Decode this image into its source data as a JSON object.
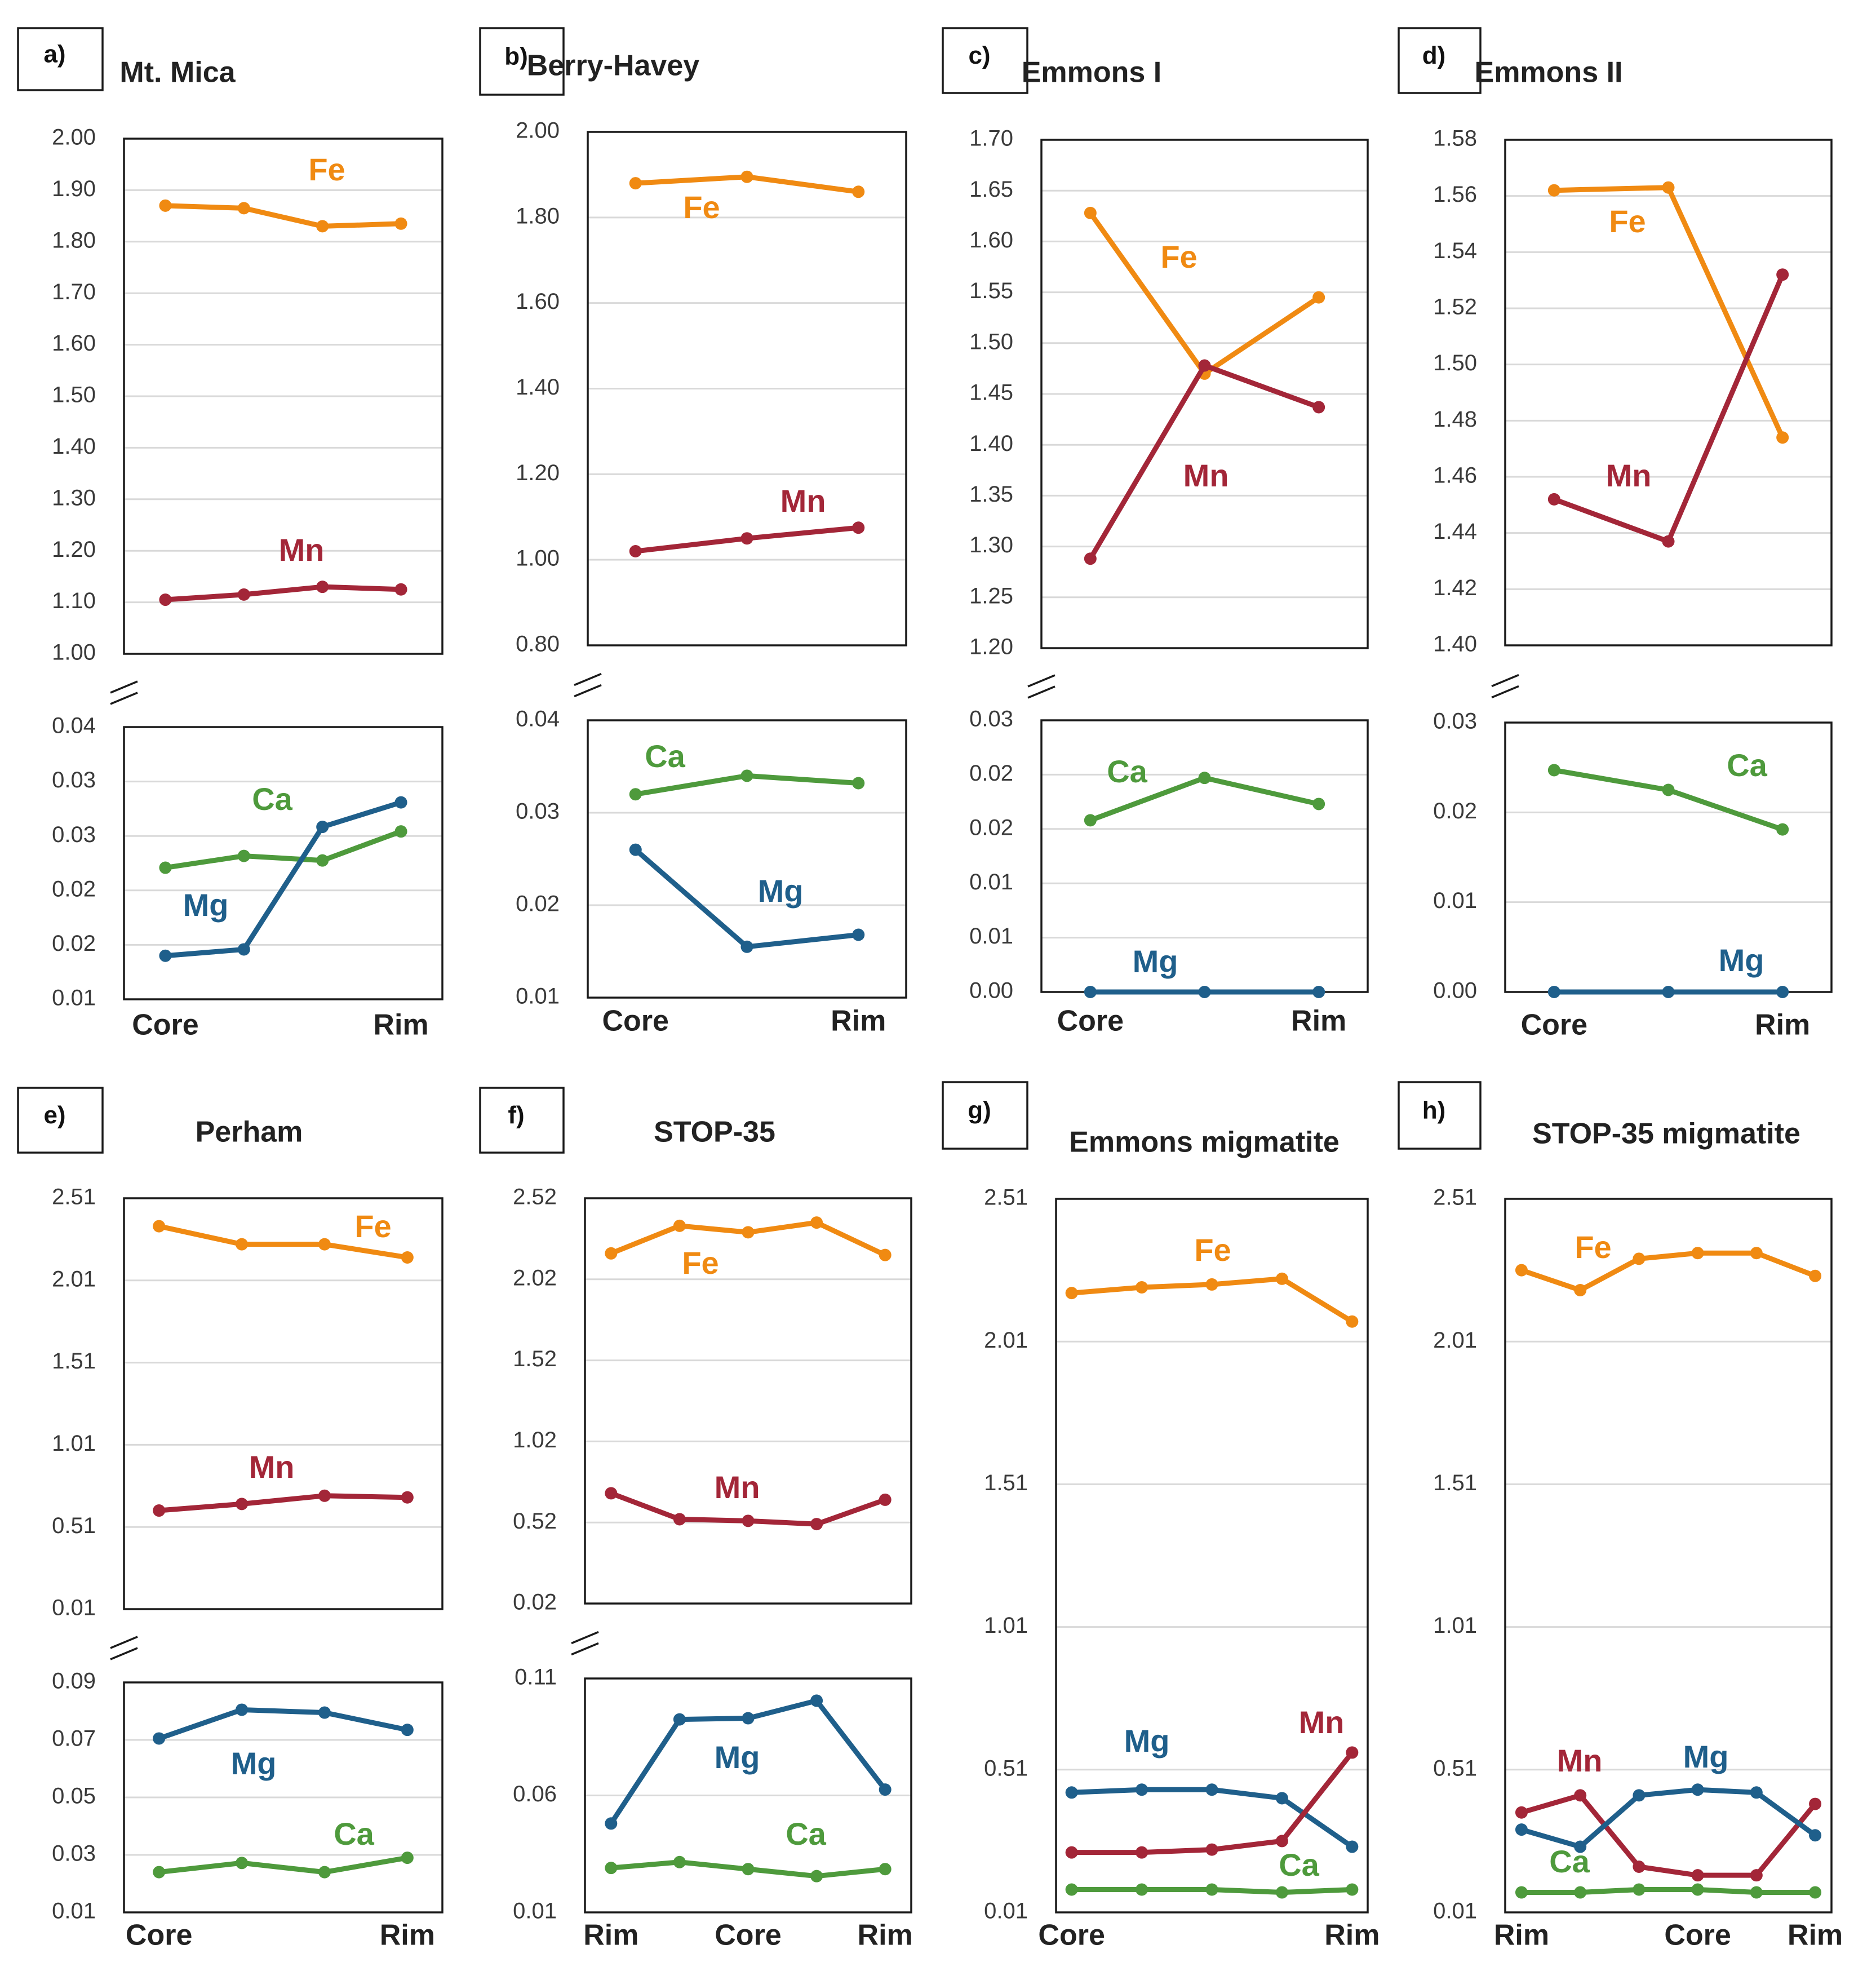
{
  "figure": {
    "colors": {
      "Fe": "#F08A12",
      "Mn": "#A32638",
      "Mg": "#1F5F8B",
      "Ca": "#4E9A3C"
    }
  },
  "chart_data": [
    {
      "id": "a",
      "panel_label": "a)",
      "title": "Mt. Mica",
      "type": "line",
      "x_labels": [
        "Core",
        "",
        "",
        "Rim"
      ],
      "top": {
        "ylim": [
          1.0,
          2.0
        ],
        "ticks": [
          "2.00",
          "1.90",
          "1.80",
          "1.70",
          "1.60",
          "1.50",
          "1.40",
          "1.30",
          "1.20",
          "1.10",
          "1.00"
        ],
        "series": [
          {
            "name": "Fe",
            "values": [
              1.87,
              1.865,
              1.83,
              1.835
            ]
          },
          {
            "name": "Mn",
            "values": [
              1.105,
              1.115,
              1.13,
              1.125
            ]
          }
        ]
      },
      "bottom": {
        "ylim": [
          0.01,
          0.04
        ],
        "ticks": [
          "0.04",
          "0.03",
          "0.03",
          "0.02",
          "0.02",
          "0.01"
        ],
        "series": [
          {
            "name": "Ca",
            "values": [
              0.0245,
              0.0258,
              0.0253,
              0.0285
            ]
          },
          {
            "name": "Mg",
            "values": [
              0.0148,
              0.0155,
              0.029,
              0.0317
            ]
          }
        ]
      },
      "labels": {
        "Fe": "Fe",
        "Mn": "Mn",
        "Ca": "Ca",
        "Mg": "Mg"
      }
    },
    {
      "id": "b",
      "panel_label": "b)",
      "title": "Berry-Havey",
      "type": "line",
      "x_labels": [
        "Core",
        "",
        "Rim"
      ],
      "top": {
        "ylim": [
          0.8,
          2.0
        ],
        "ticks": [
          "2.00",
          "1.80",
          "1.60",
          "1.40",
          "1.20",
          "1.00",
          "0.80"
        ],
        "series": [
          {
            "name": "Fe",
            "values": [
              1.88,
              1.895,
              1.86
            ]
          },
          {
            "name": "Mn",
            "values": [
              1.02,
              1.05,
              1.075
            ]
          }
        ]
      },
      "bottom": {
        "ylim": [
          0.01,
          0.04
        ],
        "ticks": [
          "0.04",
          "0.03",
          "0.02",
          "0.01"
        ],
        "series": [
          {
            "name": "Ca",
            "values": [
              0.032,
              0.034,
              0.0332
            ]
          },
          {
            "name": "Mg",
            "values": [
              0.026,
              0.0155,
              0.0168
            ]
          }
        ]
      },
      "labels": {
        "Fe": "Fe",
        "Mn": "Mn",
        "Ca": "Ca",
        "Mg": "Mg"
      }
    },
    {
      "id": "c",
      "panel_label": "c)",
      "title": "Emmons I",
      "type": "line",
      "x_labels": [
        "Core",
        "",
        "Rim"
      ],
      "top": {
        "ylim": [
          1.2,
          1.7
        ],
        "ticks": [
          "1.70",
          "1.65",
          "1.60",
          "1.55",
          "1.50",
          "1.45",
          "1.40",
          "1.35",
          "1.30",
          "1.25",
          "1.20"
        ],
        "series": [
          {
            "name": "Fe",
            "values": [
              1.628,
              1.47,
              1.545
            ]
          },
          {
            "name": "Mn",
            "values": [
              1.288,
              1.478,
              1.437
            ]
          }
        ]
      },
      "bottom": {
        "ylim": [
          0.0,
          0.025
        ],
        "ticks": [
          "0.03",
          "0.02",
          "0.02",
          "0.01",
          "0.01",
          "0.00"
        ],
        "series": [
          {
            "name": "Ca",
            "values": [
              0.0158,
              0.0197,
              0.0173
            ]
          },
          {
            "name": "Mg",
            "values": [
              0.0,
              0.0,
              0.0
            ]
          }
        ]
      },
      "labels": {
        "Fe": "Fe",
        "Mn": "Mn",
        "Ca": "Ca",
        "Mg": "Mg"
      }
    },
    {
      "id": "d",
      "panel_label": "d)",
      "title": "Emmons II",
      "type": "line",
      "x_labels": [
        "Core",
        "",
        "Rim"
      ],
      "top": {
        "ylim": [
          1.4,
          1.58
        ],
        "ticks": [
          "1.58",
          "1.56",
          "1.54",
          "1.52",
          "1.50",
          "1.48",
          "1.46",
          "1.44",
          "1.42",
          "1.40"
        ],
        "series": [
          {
            "name": "Fe",
            "values": [
              1.562,
              1.563,
              1.474
            ]
          },
          {
            "name": "Mn",
            "values": [
              1.452,
              1.437,
              1.532
            ]
          }
        ]
      },
      "bottom": {
        "ylim": [
          0.0,
          0.03
        ],
        "ticks": [
          "0.03",
          "0.02",
          "0.01",
          "0.00"
        ],
        "series": [
          {
            "name": "Ca",
            "values": [
              0.0247,
              0.0225,
              0.0181
            ]
          },
          {
            "name": "Mg",
            "values": [
              0.0,
              0.0,
              0.0
            ]
          }
        ]
      },
      "labels": {
        "Fe": "Fe",
        "Mn": "Mn",
        "Ca": "Ca",
        "Mg": "Mg"
      }
    },
    {
      "id": "e",
      "panel_label": "e)",
      "title": "Perham",
      "type": "line",
      "x_labels": [
        "Core",
        "",
        "",
        "Rim"
      ],
      "top": {
        "ylim": [
          0.01,
          2.51
        ],
        "ticks": [
          "2.51",
          "2.01",
          "1.51",
          "1.01",
          "0.51",
          "0.01"
        ],
        "series": [
          {
            "name": "Fe",
            "values": [
              2.34,
              2.23,
              2.23,
              2.15
            ]
          },
          {
            "name": "Mn",
            "values": [
              0.61,
              0.65,
              0.7,
              0.69
            ]
          }
        ]
      },
      "bottom": {
        "ylim": [
          0.01,
          0.09
        ],
        "ticks": [
          "0.09",
          "0.07",
          "0.05",
          "0.03",
          "0.01"
        ],
        "series": [
          {
            "name": "Mg",
            "values": [
              0.0705,
              0.0805,
              0.0795,
              0.0735
            ]
          },
          {
            "name": "Ca",
            "values": [
              0.024,
              0.0272,
              0.024,
              0.029
            ]
          }
        ]
      },
      "labels": {
        "Fe": "Fe",
        "Mn": "Mn",
        "Ca": "Ca",
        "Mg": "Mg"
      }
    },
    {
      "id": "f",
      "panel_label": "f)",
      "title": "STOP-35",
      "type": "line",
      "x_labels": [
        "Rim",
        "",
        "Core",
        "",
        "Rim"
      ],
      "top": {
        "ylim": [
          0.02,
          2.52
        ],
        "ticks": [
          "2.52",
          "2.02",
          "1.52",
          "1.02",
          "0.52",
          "0.02"
        ],
        "series": [
          {
            "name": "Fe",
            "values": [
              2.18,
              2.35,
              2.31,
              2.37,
              2.17
            ]
          },
          {
            "name": "Mn",
            "values": [
              0.7,
              0.54,
              0.53,
              0.51,
              0.66
            ]
          }
        ]
      },
      "bottom": {
        "ylim": [
          0.01,
          0.11
        ],
        "ticks": [
          "0.11",
          "0.06",
          "0.01"
        ],
        "series": [
          {
            "name": "Mg",
            "values": [
              0.048,
              0.0925,
              0.093,
              0.1005,
              0.0625
            ]
          },
          {
            "name": "Ca",
            "values": [
              0.029,
              0.0315,
              0.0285,
              0.0255,
              0.0285
            ]
          }
        ]
      },
      "labels": {
        "Fe": "Fe",
        "Mn": "Mn",
        "Ca": "Ca",
        "Mg": "Mg"
      }
    },
    {
      "id": "g",
      "panel_label": "g)",
      "title": "Emmons migmatite",
      "type": "line",
      "x_labels": [
        "Core",
        "",
        "",
        "",
        "Rim"
      ],
      "ylim": [
        0.01,
        2.51
      ],
      "ticks": [
        "2.51",
        "2.01",
        "1.51",
        "1.01",
        "0.51",
        "0.01"
      ],
      "series": [
        {
          "name": "Fe",
          "values": [
            2.18,
            2.2,
            2.21,
            2.23,
            2.08
          ]
        },
        {
          "name": "Mg",
          "values": [
            0.43,
            0.44,
            0.44,
            0.41,
            0.24
          ]
        },
        {
          "name": "Mn",
          "values": [
            0.22,
            0.22,
            0.23,
            0.26,
            0.57
          ]
        },
        {
          "name": "Ca",
          "values": [
            0.09,
            0.09,
            0.09,
            0.08,
            0.09
          ]
        }
      ],
      "labels": {
        "Fe": "Fe",
        "Mn": "Mn",
        "Ca": "Ca",
        "Mg": "Mg"
      }
    },
    {
      "id": "h",
      "panel_label": "h)",
      "title": "STOP-35 migmatite",
      "type": "line",
      "x_labels": [
        "Rim",
        "",
        "",
        "Core",
        "",
        "Rim"
      ],
      "ylim": [
        0.01,
        2.51
      ],
      "ticks": [
        "2.51",
        "2.01",
        "1.51",
        "1.01",
        "0.51",
        "0.01"
      ],
      "series": [
        {
          "name": "Fe",
          "values": [
            2.26,
            2.19,
            2.3,
            2.32,
            2.32,
            2.24
          ]
        },
        {
          "name": "Mn",
          "values": [
            0.36,
            0.42,
            0.17,
            0.14,
            0.14,
            0.39
          ]
        },
        {
          "name": "Mg",
          "values": [
            0.3,
            0.24,
            0.42,
            0.44,
            0.43,
            0.28
          ]
        },
        {
          "name": "Ca",
          "values": [
            0.08,
            0.08,
            0.09,
            0.09,
            0.08,
            0.08
          ]
        }
      ],
      "labels": {
        "Fe": "Fe",
        "Mn": "Mn",
        "Ca": "Ca",
        "Mg": "Mg"
      }
    }
  ]
}
